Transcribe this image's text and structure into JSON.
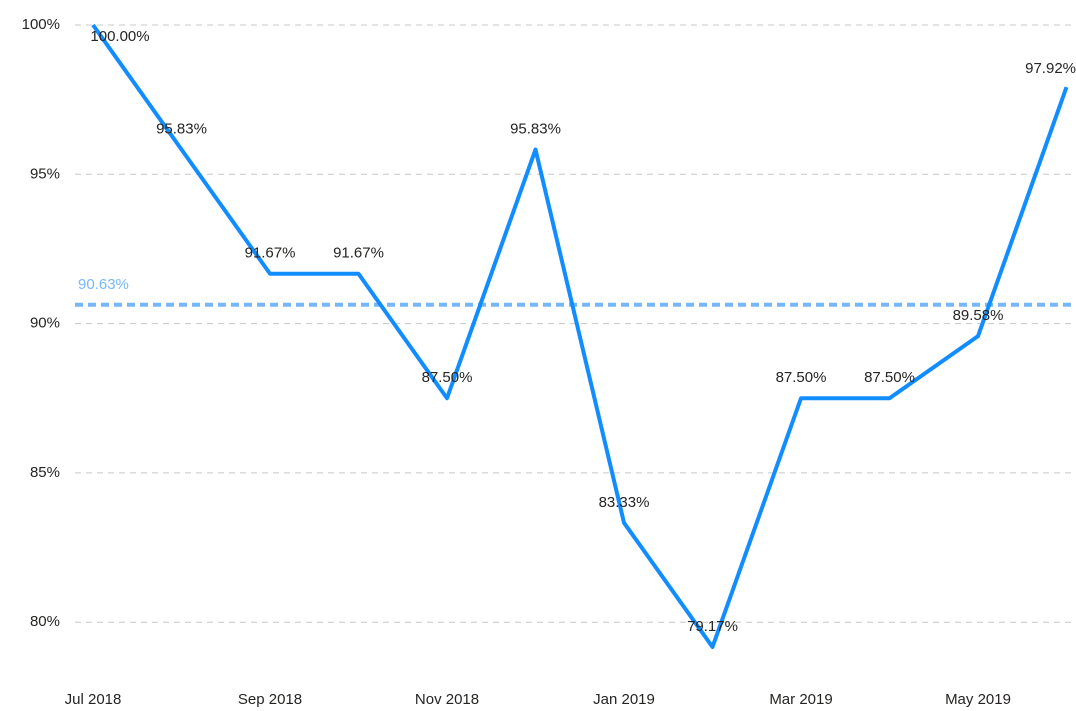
{
  "chart_data": {
    "type": "line",
    "categories": [
      "Jul 2018",
      null,
      "Sep 2018",
      null,
      "Nov 2018",
      null,
      "Jan 2019",
      null,
      "Mar 2019",
      null,
      "May 2019",
      null
    ],
    "values": [
      100,
      95.83,
      91.67,
      91.67,
      87.5,
      95.83,
      83.33,
      79.17,
      87.5,
      87.5,
      89.58,
      97.92
    ],
    "value_labels": [
      "100.00%",
      "95.83%",
      "91.67%",
      "91.67%",
      "87.50%",
      "95.83%",
      "83.33%",
      "79.17%",
      "87.50%",
      "87.50%",
      "89.58%",
      "97.92%"
    ],
    "color": "#118dff",
    "ylim": [
      78.4,
      100
    ],
    "yticks": [
      {
        "value": 80,
        "label": "80%"
      },
      {
        "value": 85,
        "label": "85%"
      },
      {
        "value": 90,
        "label": "90%"
      },
      {
        "value": 95,
        "label": "95%"
      },
      {
        "value": 100,
        "label": "100%"
      }
    ],
    "grid": true,
    "reference_line": {
      "value": 90.63,
      "label": "90.63%",
      "color": "#77b7f7"
    }
  }
}
